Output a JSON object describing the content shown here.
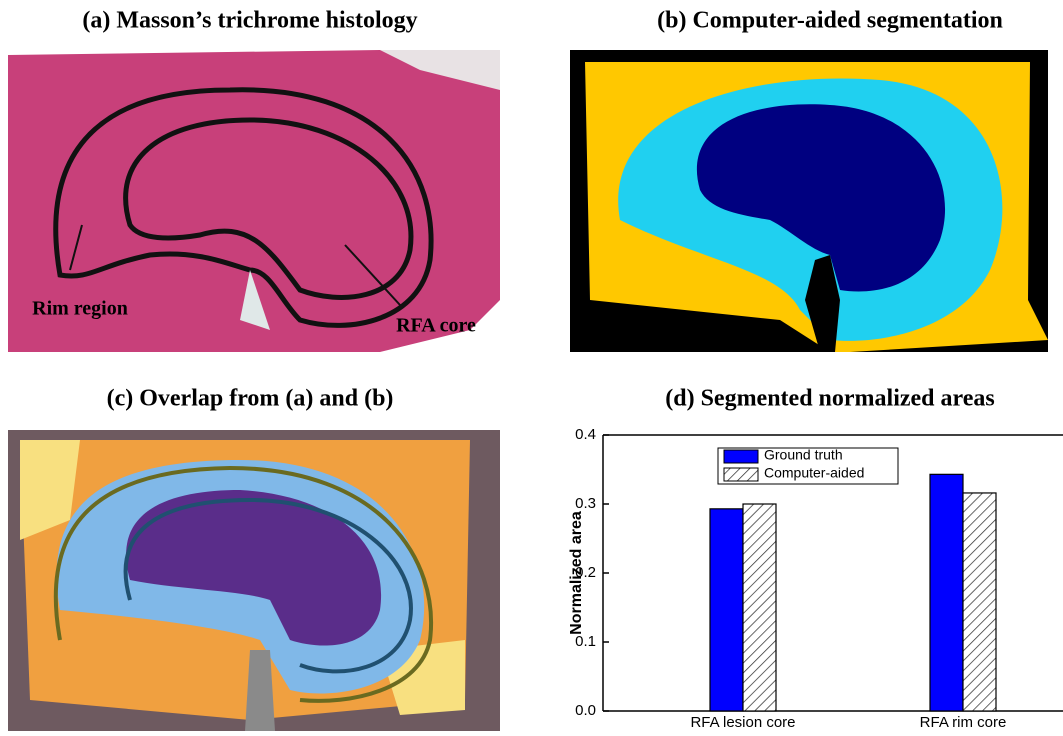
{
  "panels": [
    {
      "title": "(a) Masson’s trichrome histology",
      "annotations": [
        "Rim region",
        "RFA core"
      ]
    },
    {
      "title": "(b) Computer-aided segmentation"
    },
    {
      "title": "(c) Overlap from (a) and (b)"
    }
  ],
  "chart_data": {
    "type": "bar",
    "title": "(d) Segmented normalized areas",
    "categories": [
      "RFA lesion core",
      "RFA rim core"
    ],
    "series": [
      {
        "name": "Ground truth",
        "color": "#0000ff",
        "hatch": false,
        "values": [
          0.293,
          0.343
        ]
      },
      {
        "name": "Computer-aided",
        "color": "#ffffff",
        "hatch": true,
        "values": [
          0.3,
          0.316
        ]
      }
    ],
    "y_label": "Normalized area",
    "ylim": [
      0,
      0.4
    ],
    "yticks": [
      {
        "value": 0,
        "label": "0.0"
      },
      0.1,
      0.2,
      0.3,
      0.4
    ],
    "legend": "upper-left"
  }
}
